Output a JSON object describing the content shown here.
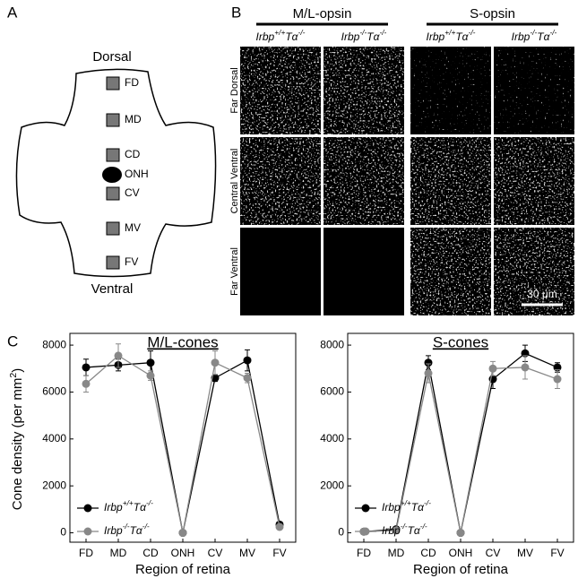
{
  "panel_a": {
    "label": "A",
    "top": "Dorsal",
    "bottom": "Ventral",
    "regions": [
      "FD",
      "MD",
      "CD",
      "ONH",
      "CV",
      "MV",
      "FV"
    ]
  },
  "panel_b": {
    "label": "B",
    "groups": [
      {
        "name": "M/L-opsin",
        "columns": [
          "Irbp+/+Tα-/-",
          "Irbp-/-Tα-/-"
        ]
      },
      {
        "name": "S-opsin",
        "columns": [
          "Irbp+/+Tα-/-",
          "Irbp-/-Tα-/-"
        ]
      }
    ],
    "rows": [
      "Far Dorsal",
      "Central Ventral",
      "Far Ventral"
    ],
    "scale_bar": "30 μm"
  },
  "panel_c_label": "C",
  "chart_data": [
    {
      "type": "line",
      "title": "M/L-cones",
      "x_label": "Region of retina",
      "y_label": "Cone density (per mm2)",
      "categories": [
        "FD",
        "MD",
        "CD",
        "ONH",
        "CV",
        "MV",
        "FV"
      ],
      "ylim": [
        -400,
        8500
      ],
      "yticks": [
        0,
        2000,
        4000,
        6000,
        8000
      ],
      "legend": "lower right",
      "series": [
        {
          "name": "Irbp+/+Tα-/-",
          "color": "#000000",
          "values": [
            7050,
            7150,
            7250,
            0,
            6600,
            7350,
            350
          ],
          "errors": [
            350,
            250,
            500,
            0,
            150,
            450,
            50
          ]
        },
        {
          "name": "Irbp-/-Tα-/-",
          "color": "#888888",
          "values": [
            6350,
            7550,
            6700,
            0,
            7250,
            6600,
            250
          ],
          "errors": [
            350,
            500,
            200,
            0,
            500,
            200,
            50
          ]
        }
      ]
    },
    {
      "type": "line",
      "title": "S-cones",
      "x_label": "Region of retina",
      "categories": [
        "FD",
        "MD",
        "CD",
        "ONH",
        "CV",
        "MV",
        "FV"
      ],
      "ylim": [
        -400,
        8500
      ],
      "yticks": [
        0,
        2000,
        4000,
        6000,
        8000
      ],
      "legend": "lower right",
      "series": [
        {
          "name": "Irbp+/+Tα-/-",
          "color": "#000000",
          "values": [
            50,
            150,
            7250,
            0,
            6550,
            7650,
            7050
          ],
          "errors": [
            0,
            0,
            300,
            0,
            400,
            350,
            200
          ]
        },
        {
          "name": "Irbp-/-Tα-/-",
          "color": "#888888",
          "values": [
            50,
            100,
            6800,
            0,
            7000,
            7050,
            6550
          ],
          "errors": [
            0,
            0,
            400,
            0,
            300,
            500,
            400
          ]
        }
      ]
    }
  ]
}
